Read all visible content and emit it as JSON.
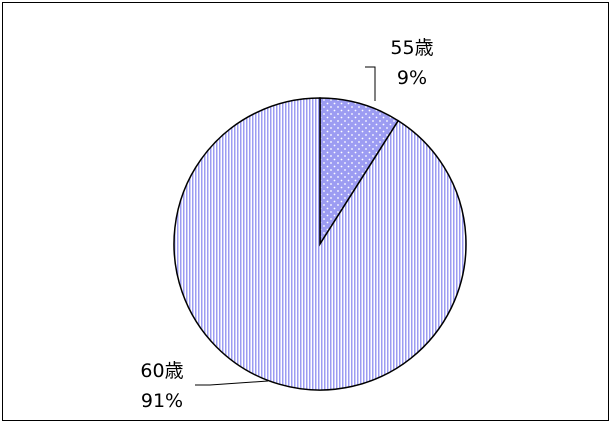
{
  "chart_data": {
    "type": "pie",
    "title": "",
    "slices": [
      {
        "label": "55歳",
        "percent_label": "9%",
        "value": 9,
        "fill_pattern": "dots"
      },
      {
        "label": "60歳",
        "percent_label": "91%",
        "value": 91,
        "fill_pattern": "vertical-stripes"
      }
    ],
    "start_angle_deg": 0,
    "direction": "clockwise",
    "legend": "none"
  },
  "colors": {
    "slice_base": "#9c9cf2",
    "slice_light": "#ffffff",
    "outline": "#000000",
    "frame": "#000000"
  }
}
